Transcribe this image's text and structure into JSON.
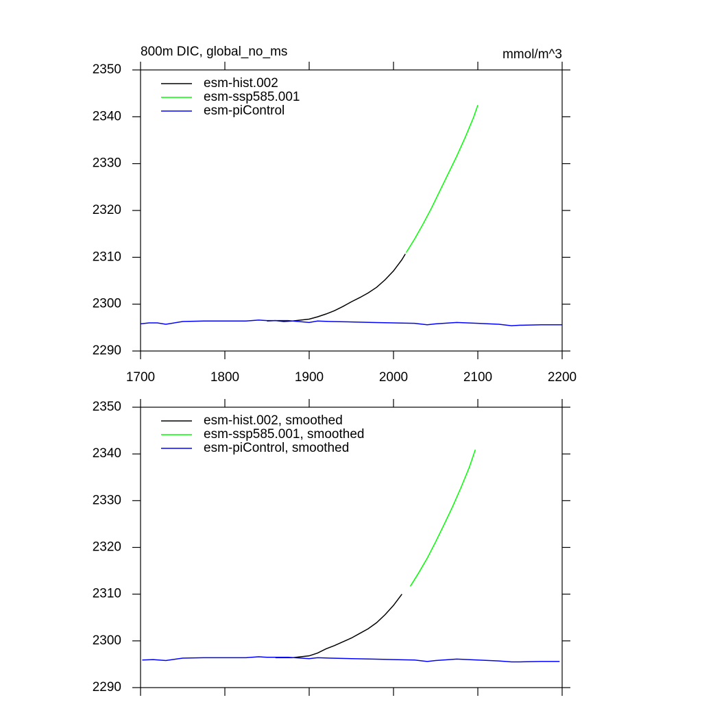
{
  "chart_data": [
    {
      "type": "line",
      "title": "800m DIC, global_no_ms",
      "units": "mmol/m^3",
      "xlim": [
        1700,
        2200
      ],
      "ylim": [
        2290,
        2350
      ],
      "xticks": [
        1700,
        1800,
        1900,
        2000,
        2100,
        2200
      ],
      "yticks": [
        2290,
        2300,
        2310,
        2320,
        2330,
        2340,
        2350
      ],
      "xtick_labels": true,
      "legend": "upper left",
      "series": [
        {
          "name": "esm-hist.002",
          "color": "#000000",
          "x": [
            1850,
            1860,
            1870,
            1880,
            1890,
            1900,
            1910,
            1920,
            1930,
            1940,
            1950,
            1960,
            1970,
            1980,
            1990,
            2000,
            2010,
            2014
          ],
          "values": [
            2296.4,
            2296.5,
            2296.3,
            2296.4,
            2296.6,
            2296.8,
            2297.3,
            2297.9,
            2298.6,
            2299.5,
            2300.5,
            2301.4,
            2302.4,
            2303.6,
            2305.2,
            2307.1,
            2309.5,
            2310.7
          ]
        },
        {
          "name": "esm-ssp585.001",
          "color": "#00ff00",
          "x": [
            2015,
            2025,
            2035,
            2045,
            2055,
            2065,
            2075,
            2085,
            2095,
            2100
          ],
          "values": [
            2311.0,
            2313.9,
            2317.1,
            2320.5,
            2324.2,
            2327.9,
            2331.6,
            2335.6,
            2339.9,
            2342.5
          ]
        },
        {
          "name": "esm-piControl",
          "color": "#0000ff",
          "x": [
            1700,
            1710,
            1720,
            1730,
            1750,
            1775,
            1800,
            1825,
            1840,
            1850,
            1875,
            1900,
            1910,
            1925,
            1950,
            1975,
            2000,
            2025,
            2040,
            2050,
            2075,
            2100,
            2125,
            2140,
            2150,
            2175,
            2200
          ],
          "values": [
            2295.8,
            2296.0,
            2296.0,
            2295.7,
            2296.3,
            2296.4,
            2296.4,
            2296.4,
            2296.6,
            2296.5,
            2296.5,
            2296.1,
            2296.4,
            2296.3,
            2296.2,
            2296.1,
            2296.0,
            2295.9,
            2295.6,
            2295.8,
            2296.1,
            2295.9,
            2295.7,
            2295.4,
            2295.5,
            2295.6,
            2295.6
          ]
        }
      ]
    },
    {
      "type": "line",
      "xlim": [
        1700,
        2200
      ],
      "ylim": [
        2290,
        2350
      ],
      "xticks": [
        1700,
        1800,
        1900,
        2000,
        2100,
        2200
      ],
      "yticks": [
        2290,
        2300,
        2310,
        2320,
        2330,
        2340,
        2350
      ],
      "xtick_labels": false,
      "legend": "upper left",
      "series": [
        {
          "name": "esm-hist.002, smoothed",
          "color": "#000000",
          "x": [
            1860,
            1870,
            1880,
            1890,
            1900,
            1910,
            1920,
            1930,
            1940,
            1950,
            1960,
            1970,
            1980,
            1990,
            2000,
            2010
          ],
          "values": [
            2296.4,
            2296.4,
            2296.4,
            2296.6,
            2296.8,
            2297.4,
            2298.3,
            2299.0,
            2299.8,
            2300.6,
            2301.6,
            2302.6,
            2303.9,
            2305.6,
            2307.6,
            2310.0
          ]
        },
        {
          "name": "esm-ssp585.001, smoothed",
          "color": "#00ff00",
          "x": [
            2020,
            2030,
            2040,
            2050,
            2060,
            2070,
            2080,
            2090,
            2097
          ],
          "values": [
            2311.7,
            2314.6,
            2317.7,
            2321.2,
            2324.9,
            2328.7,
            2332.8,
            2337.2,
            2340.9
          ]
        },
        {
          "name": "esm-piControl, smoothed",
          "color": "#0000ff",
          "x": [
            1702,
            1715,
            1730,
            1750,
            1775,
            1800,
            1825,
            1840,
            1850,
            1875,
            1900,
            1910,
            1925,
            1950,
            1975,
            2000,
            2025,
            2040,
            2050,
            2075,
            2100,
            2125,
            2140,
            2150,
            2175,
            2197
          ],
          "values": [
            2295.9,
            2296.0,
            2295.8,
            2296.3,
            2296.4,
            2296.4,
            2296.4,
            2296.6,
            2296.5,
            2296.5,
            2296.2,
            2296.4,
            2296.3,
            2296.2,
            2296.1,
            2296.0,
            2295.9,
            2295.6,
            2295.8,
            2296.1,
            2295.9,
            2295.7,
            2295.5,
            2295.5,
            2295.6,
            2295.6
          ]
        }
      ]
    }
  ]
}
